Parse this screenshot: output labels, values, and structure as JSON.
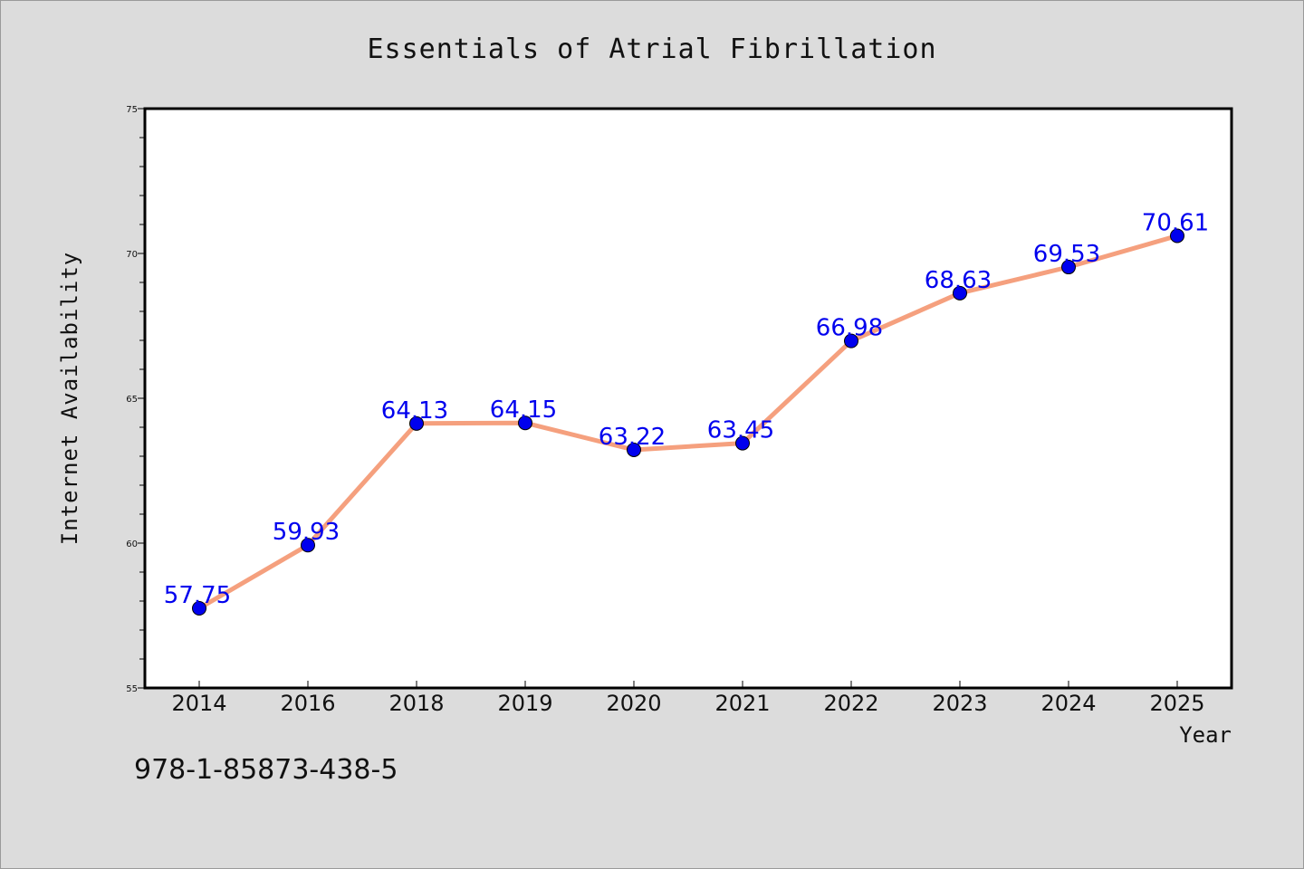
{
  "chart_data": {
    "type": "line",
    "title": "Essentials of Atrial Fibrillation",
    "xlabel": "Year",
    "ylabel": "Internet Availability",
    "categories": [
      "2014",
      "2016",
      "2018",
      "2019",
      "2020",
      "2021",
      "2022",
      "2023",
      "2024",
      "2025"
    ],
    "series": [
      {
        "values": [
          57.75,
          59.93,
          64.13,
          64.15,
          63.22,
          63.45,
          66.98,
          68.63,
          69.53,
          70.61
        ],
        "value_labels": [
          "57.75",
          "59.93",
          "64.13",
          "64.15",
          "63.22",
          "63.45",
          "66.98",
          "68.63",
          "69.53",
          "70.61"
        ]
      }
    ],
    "ylim": [
      55,
      75
    ],
    "yticks": [
      "55",
      "60",
      "65",
      "70",
      "75"
    ],
    "grid": false,
    "legend": "none",
    "colors": {
      "line": "#f5a07e",
      "marker": "#0000ee",
      "data_label": "#0000ee",
      "background": "#dcdcdc",
      "plot_area": "#ffffff"
    }
  },
  "footer": {
    "isbn": "978-1-85873-438-5"
  }
}
